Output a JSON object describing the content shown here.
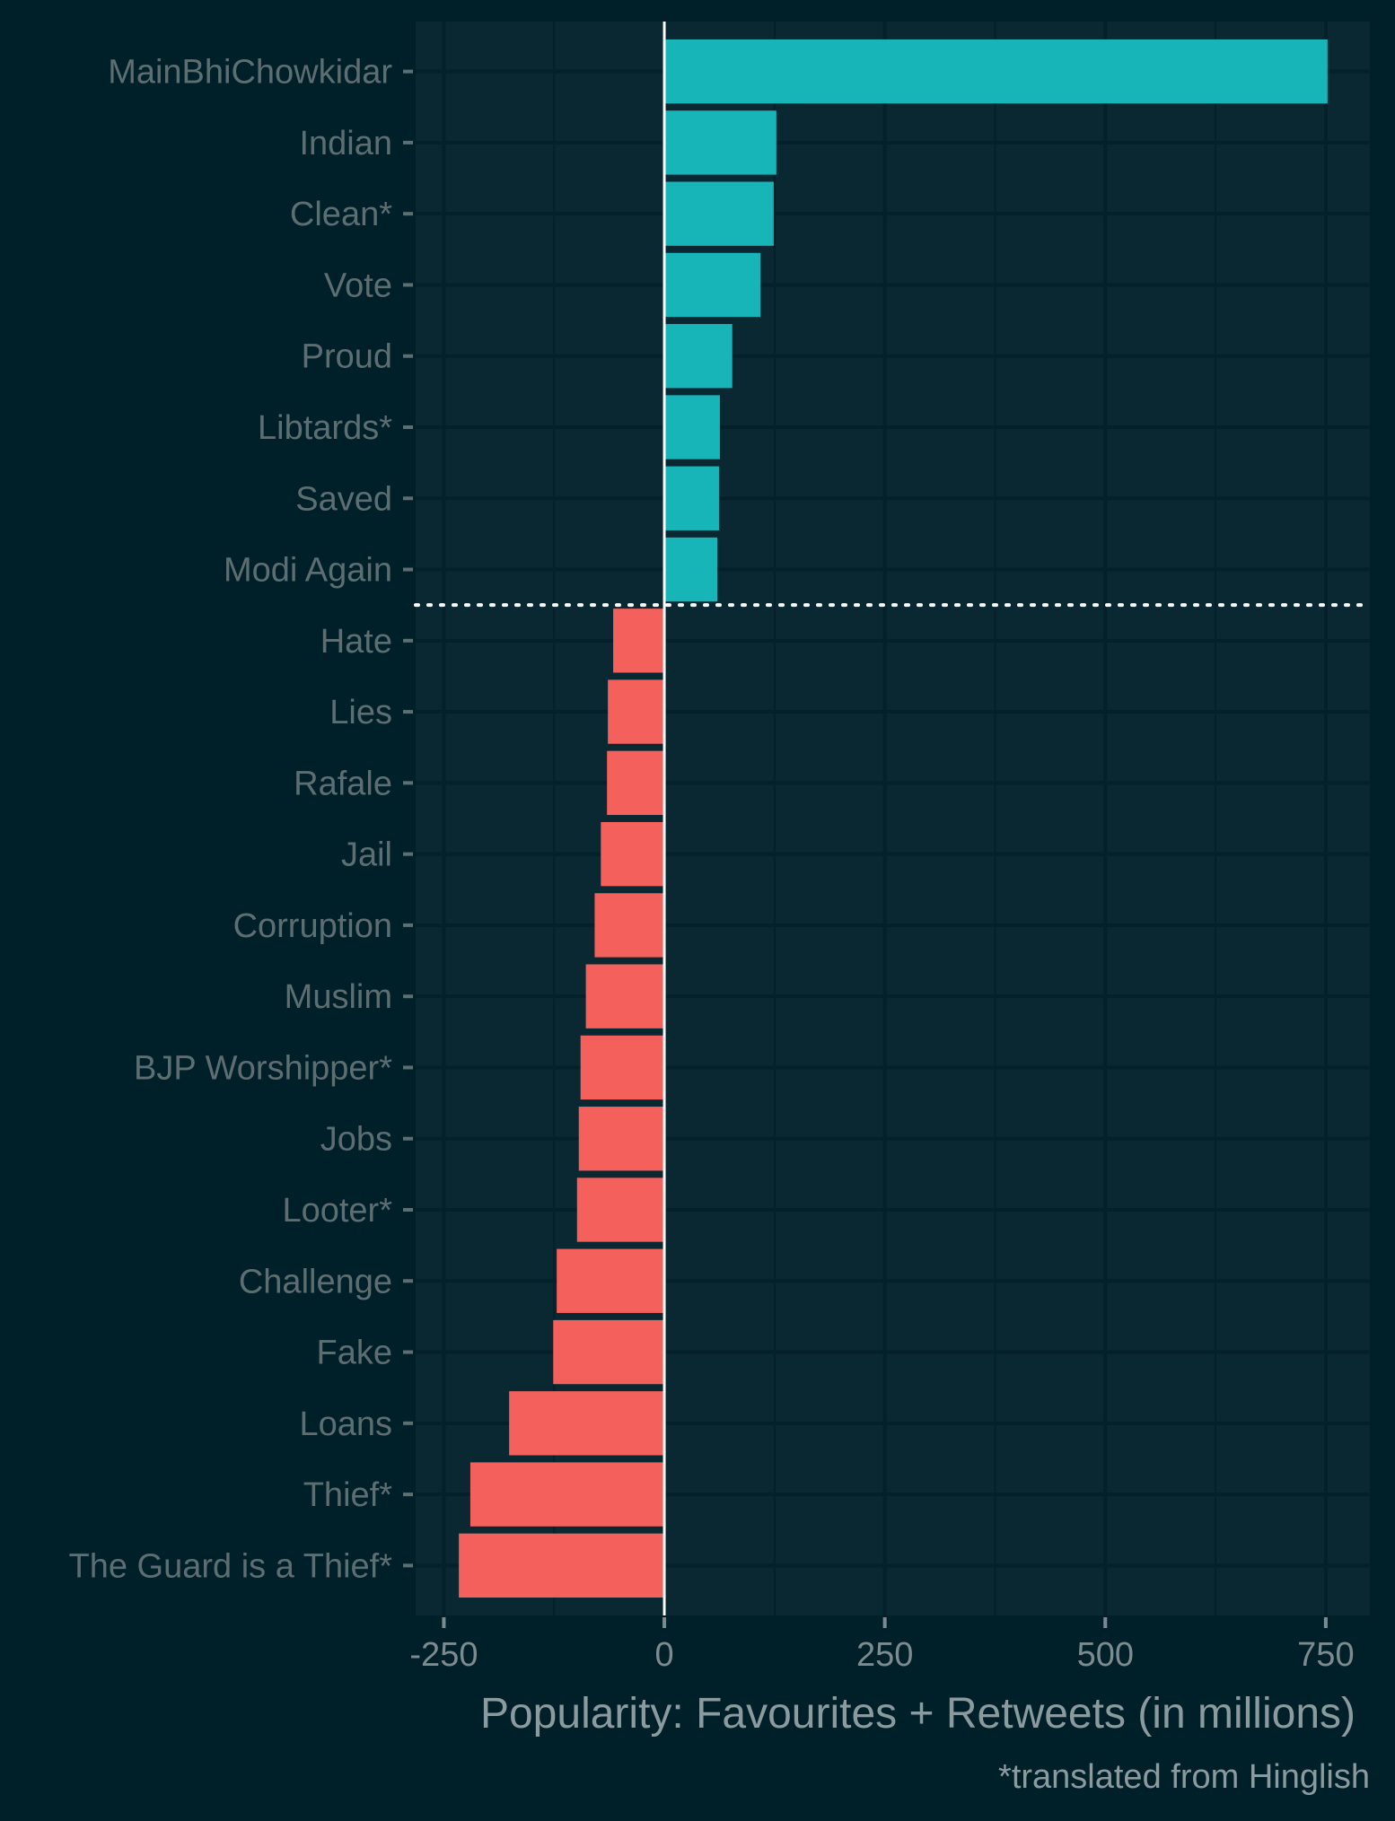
{
  "chart_data": {
    "type": "bar",
    "orientation": "horizontal",
    "categories": [
      "MainBhiChowkidar",
      "Indian",
      "Clean*",
      "Vote",
      "Proud",
      "Libtards*",
      "Saved",
      "Modi Again",
      "Hate",
      "Lies",
      "Rafale",
      "Jail",
      "Corruption",
      "Muslim",
      "BJP Worshipper*",
      "Jobs",
      "Looter*",
      "Challenge",
      "Fake",
      "Loans",
      "Thief*",
      "The Guard is a Thief*"
    ],
    "values": [
      752,
      127,
      124,
      109,
      77,
      63,
      62,
      60,
      -58,
      -64,
      -65,
      -72,
      -79,
      -89,
      -95,
      -97,
      -99,
      -122,
      -126,
      -176,
      -220,
      -233
    ],
    "xlim": [
      -282,
      800
    ],
    "xticks": [
      -250,
      0,
      250,
      500,
      750
    ],
    "xtick_labels": [
      "-250",
      "0",
      "250",
      "500",
      "750"
    ],
    "xlabel": "Popularity: Favourites + Retweets (in millions)",
    "ylabel": "",
    "title": "",
    "caption": "*translated from Hinglish",
    "colors": {
      "positive": "#18b5b8",
      "negative": "#f4615c",
      "panel": "#0a2832",
      "background": "#002029",
      "gridline": "#04202a",
      "zero_line": "#ffffff",
      "separator": "#ffffff"
    },
    "grid": true,
    "separator_between": [
      "Modi Again",
      "Hate"
    ]
  }
}
